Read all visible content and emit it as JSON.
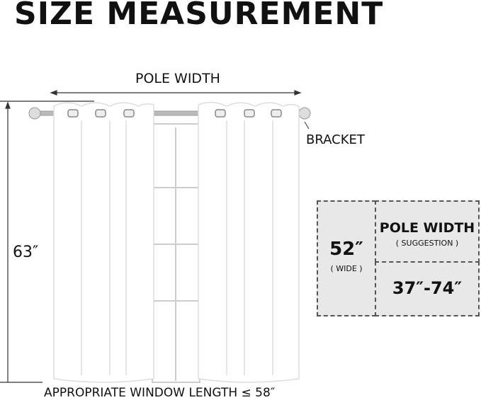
{
  "title": "SIZE MEASUREMENT",
  "labels": {
    "pole_width": "POLE WIDTH",
    "bracket": "BRACKET",
    "height": "63″",
    "window_length": "APPROPRIATE WINDOW LENGTH ≤ 58″"
  },
  "spec_table": {
    "width_value": "52″",
    "width_note": "( WIDE )",
    "pole_header": "POLE WIDTH",
    "pole_note": "( SUGGESTION )",
    "pole_range": "37″-74″"
  },
  "colors": {
    "panel_fill": "#e8e8e8",
    "curtain": "#ffffff",
    "outline": "#cccccc"
  }
}
